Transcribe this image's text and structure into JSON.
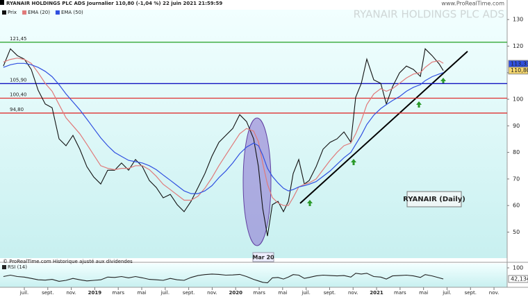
{
  "header": {
    "title": "RYANAIR HOLDINGS PLC ADS Journalier 110,80 (-1,04 %) 22 juin 2021 21:59:59",
    "watermark": "RYANAIR HOLDINGS PLC ADS",
    "site": "www.ProRealTime.com"
  },
  "chart_data": [
    {
      "type": "line",
      "x": [
        -1.78,
        -1.18,
        -0.59,
        0,
        0.59,
        1.18,
        1.78,
        2.37,
        2.96,
        3.55,
        4.14,
        4.73,
        5.33,
        5.92,
        6.51,
        7.1,
        7.69,
        8.28,
        8.88,
        9.47,
        10.06,
        10.65,
        11.24,
        11.83,
        12.43,
        13.02,
        13.61,
        14.2,
        14.79,
        15.38,
        15.98,
        16.57,
        17.16,
        17.75,
        18.34,
        18.93,
        19.53,
        19.94,
        20.3,
        20.71,
        21.12,
        21.6,
        22.07,
        22.49,
        22.9,
        23.37,
        23.85,
        24.26,
        24.85,
        25.44,
        26.04,
        26.63,
        27.22,
        27.81,
        28.22,
        28.7,
        29.17,
        29.76,
        30.36,
        30.83,
        31.36,
        31.95,
        32.54,
        33.14,
        33.73,
        34.14,
        34.73,
        35.33,
        35.68
      ],
      "series": [
        {
          "name": "Prix",
          "color": "#111111",
          "values": [
            112.5,
            119,
            116.4,
            115.1,
            111.2,
            103.4,
            98.2,
            96.8,
            85.1,
            82.5,
            86.4,
            81.2,
            74.6,
            70.7,
            68.1,
            73.3,
            73.3,
            76,
            73.3,
            77.3,
            74.6,
            69.4,
            66.8,
            62.9,
            64.2,
            60.3,
            57.7,
            61.6,
            66.8,
            72,
            78.6,
            83.8,
            86.4,
            89,
            94.2,
            91.6,
            85.1,
            74.6,
            59,
            48.5,
            60.3,
            61.6,
            57.7,
            61.6,
            72,
            77.3,
            68.1,
            69.4,
            74.6,
            81.2,
            83.8,
            85.1,
            87.7,
            83.8,
            100.8,
            106,
            115.1,
            107.3,
            106,
            98.2,
            104.7,
            109.9,
            112.5,
            111.2,
            108.6,
            119,
            116.4,
            113.3,
            110.8
          ]
        },
        {
          "name": "EMA (20)",
          "color": "#e07a7a",
          "values": [
            114,
            115,
            115.5,
            115,
            113.5,
            110,
            106,
            103,
            98,
            93,
            90,
            87,
            83,
            79,
            75,
            74,
            73.5,
            74,
            74,
            75,
            75,
            73.5,
            71,
            68,
            66,
            64,
            62,
            62,
            63.5,
            66.5,
            70.5,
            75,
            79,
            83,
            87,
            89,
            88,
            84,
            76,
            68,
            63,
            61,
            60,
            60,
            63,
            67,
            68,
            68.5,
            70,
            73.5,
            77,
            80,
            82.5,
            83.5,
            87,
            92,
            98,
            102,
            104,
            103,
            104,
            106,
            108,
            109.5,
            110,
            112,
            114,
            114.5,
            113.5
          ]
        },
        {
          "name": "EMA (50)",
          "color": "#3050e0",
          "values": [
            112,
            113,
            113.5,
            113.5,
            113,
            112,
            110.5,
            108.5,
            105.5,
            102,
            99,
            96,
            92.5,
            89,
            85.5,
            82.5,
            80,
            78.5,
            77,
            76.5,
            76,
            75,
            73.5,
            71.5,
            69.5,
            67.5,
            65.5,
            64.5,
            64.5,
            65.5,
            67.5,
            70.5,
            73,
            76,
            79.5,
            82,
            83.5,
            82.5,
            79,
            74,
            71,
            68.5,
            66.5,
            65.5,
            66,
            67,
            67.5,
            68,
            69,
            71,
            73,
            75.5,
            78,
            80,
            83,
            86.5,
            90.5,
            94,
            96.5,
            98,
            99.5,
            101,
            103,
            104.5,
            105.5,
            107,
            108.5,
            109.5,
            110
          ]
        }
      ],
      "xlim": [
        -2.07,
        41.12
      ],
      "xticks": [
        {
          "value": 0,
          "label": "juil."
        },
        {
          "value": 2,
          "label": "sept."
        },
        {
          "value": 4,
          "label": "nov."
        },
        {
          "value": 6,
          "label": "2019"
        },
        {
          "value": 8,
          "label": "mars"
        },
        {
          "value": 10,
          "label": "mai"
        },
        {
          "value": 12,
          "label": "juil."
        },
        {
          "value": 14,
          "label": "sept."
        },
        {
          "value": 16,
          "label": "nov."
        },
        {
          "value": 18,
          "label": "2020"
        },
        {
          "value": 20,
          "label": "mars"
        },
        {
          "value": 22,
          "label": "mai"
        },
        {
          "value": 24,
          "label": "juil."
        },
        {
          "value": 26,
          "label": "sept."
        },
        {
          "value": 28,
          "label": "nov."
        },
        {
          "value": 30,
          "label": "2021"
        },
        {
          "value": 32,
          "label": "mars"
        },
        {
          "value": 34,
          "label": "mai"
        },
        {
          "value": 36,
          "label": "juil."
        },
        {
          "value": 38,
          "label": "sept."
        },
        {
          "value": 40,
          "label": "nov."
        }
      ],
      "ylim": [
        40.2,
        133.7
      ],
      "yticks": [
        50,
        60,
        70,
        80,
        90,
        100,
        110,
        120,
        130
      ],
      "levels": [
        {
          "value": 121.45,
          "label": "121,45",
          "color": "#20a020"
        },
        {
          "value": 105.9,
          "label": "105,90",
          "color": "#1010c0"
        },
        {
          "value": 100.4,
          "label": "100,40",
          "color": "#e03030"
        },
        {
          "value": 94.8,
          "label": "94,80",
          "color": "#e03030"
        }
      ],
      "last_labels": [
        {
          "value": 113.33,
          "label": "113,33",
          "color": "#3050e0"
        },
        {
          "value": 110.8,
          "label": "110,80",
          "color": "#f5d76e"
        }
      ],
      "annotations": [
        "Mar 20",
        "RYANAIR (Daily)"
      ],
      "note": "© ProRealTime.com Historique ajusté aux dividendes"
    },
    {
      "type": "line",
      "x": [
        -1.78,
        -1.18,
        -0.59,
        0,
        0.59,
        1.18,
        1.78,
        2.37,
        2.96,
        3.55,
        4.14,
        4.73,
        5.33,
        5.92,
        6.51,
        7.1,
        7.69,
        8.28,
        8.88,
        9.47,
        10.06,
        10.65,
        11.24,
        11.83,
        12.43,
        13.02,
        13.61,
        14.2,
        14.79,
        15.38,
        15.98,
        16.57,
        17.16,
        17.75,
        18.34,
        18.93,
        19.53,
        19.94,
        20.3,
        20.71,
        21.12,
        21.6,
        22.07,
        22.49,
        22.9,
        23.37,
        23.85,
        24.26,
        24.85,
        25.44,
        26.04,
        26.63,
        27.22,
        27.81,
        28.22,
        28.7,
        29.17,
        29.76,
        30.36,
        30.83,
        31.36,
        31.95,
        32.54,
        33.14,
        33.73,
        34.14,
        34.73,
        35.33,
        35.68
      ],
      "series": [
        {
          "name": "RSI (14)",
          "color": "#222222",
          "values": [
            55,
            62,
            55,
            52,
            45,
            38,
            36,
            40,
            30,
            35,
            45,
            38,
            32,
            35,
            38,
            52,
            50,
            55,
            48,
            55,
            48,
            40,
            38,
            35,
            45,
            38,
            35,
            50,
            60,
            65,
            68,
            66,
            62,
            63,
            66,
            55,
            40,
            32,
            25,
            22,
            48,
            50,
            42,
            52,
            65,
            62,
            45,
            50,
            58,
            62,
            60,
            58,
            60,
            52,
            72,
            68,
            72,
            55,
            52,
            42,
            58,
            60,
            62,
            58,
            50,
            65,
            58,
            48,
            42.134
          ]
        }
      ],
      "xlim": [
        -2.07,
        41.12
      ],
      "ylim": [
        -1.2,
        118.1
      ],
      "yticks": [
        100
      ],
      "last_labels": [
        {
          "value": 42.134,
          "label": "42,134",
          "color": "#ffffff"
        }
      ]
    }
  ]
}
